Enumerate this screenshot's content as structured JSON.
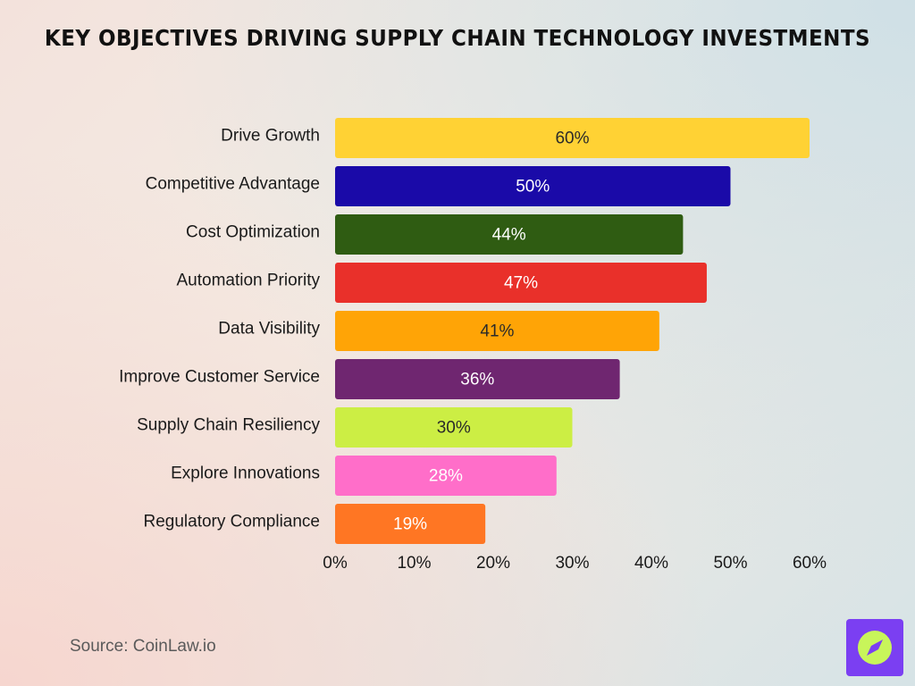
{
  "title": "Key Objectives Driving Supply Chain Technology Investments",
  "source": "Source: CoinLaw.io",
  "logo": {
    "icon": "coinlaw-compass-logo",
    "background": "#7b3ff2",
    "accent": "#c8f55a"
  },
  "chart_data": {
    "type": "bar",
    "orientation": "horizontal",
    "title": "Key Objectives Driving Supply Chain Technology Investments",
    "xlabel": "",
    "ylabel": "",
    "xlim": [
      0,
      60
    ],
    "x_ticks": [
      "0%",
      "10%",
      "20%",
      "30%",
      "40%",
      "50%",
      "60%"
    ],
    "grid": false,
    "legend": "none",
    "categories": [
      "Drive Growth",
      "Competitive Advantage",
      "Cost Optimization",
      "Automation Priority",
      "Data Visibility",
      "Improve Customer Service",
      "Supply Chain Resiliency",
      "Explore Innovations",
      "Regulatory Compliance"
    ],
    "values": [
      60,
      50,
      44,
      47,
      41,
      36,
      30,
      28,
      19
    ],
    "data_labels": [
      "60%",
      "50%",
      "44%",
      "47%",
      "41%",
      "36%",
      "30%",
      "28%",
      "19%"
    ],
    "colors": [
      "#ffd234",
      "#1a0aa8",
      "#2f5c12",
      "#e9302a",
      "#ffa406",
      "#6f2670",
      "#ccee44",
      "#ff6ec9",
      "#ff7623"
    ],
    "label_colors": [
      "#2a2a2a",
      "#ffffff",
      "#ffffff",
      "#ffffff",
      "#2a2a2a",
      "#ffffff",
      "#2a2a2a",
      "#ffffff",
      "#ffffff"
    ]
  }
}
